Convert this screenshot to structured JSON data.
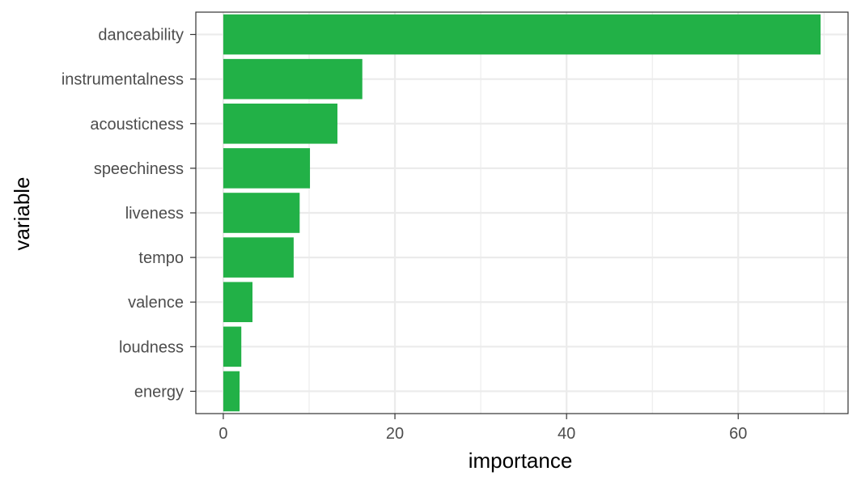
{
  "chart_data": {
    "type": "bar",
    "orientation": "horizontal",
    "categories": [
      "danceability",
      "instrumentalness",
      "acousticness",
      "speechiness",
      "liveness",
      "tempo",
      "valence",
      "loudness",
      "energy"
    ],
    "values": [
      69.6,
      16.2,
      13.3,
      10.1,
      8.9,
      8.2,
      3.4,
      2.1,
      1.9
    ],
    "xlabel": "importance",
    "ylabel": "variable",
    "xlim": [
      -3.2,
      72.8
    ],
    "xticks": [
      0,
      20,
      40,
      60
    ],
    "xtick_labels": [
      "0",
      "20",
      "40",
      "60"
    ],
    "grid": true,
    "bar_color": "#22b147",
    "gridline_color": "#ebebeb",
    "axis_color": "#333333"
  }
}
